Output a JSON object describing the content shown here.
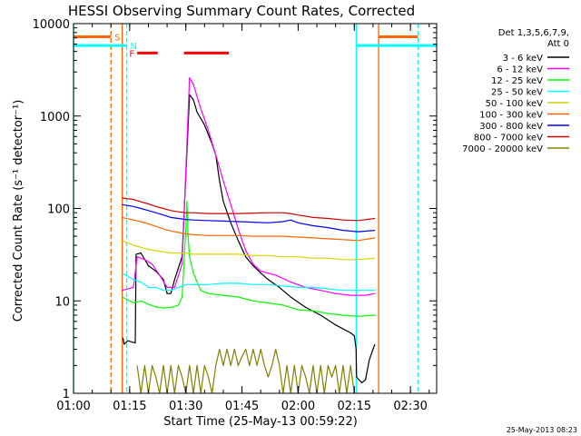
{
  "chart_data": {
    "type": "line",
    "title": "HESSI Observing Summary Count Rates, Corrected",
    "xlabel": "Start Time (25-May-13 00:59:22)",
    "ylabel": "Corrected Count Rate (s⁻¹ detector⁻¹)",
    "x_unit": "minutes after 01:00 (25-May-13)",
    "xlim": [
      0,
      97
    ],
    "ylim": [
      1,
      10000
    ],
    "y_scale": "log",
    "grid": false,
    "x_ticks": [
      {
        "label": "01:00",
        "value": 0
      },
      {
        "label": "01:15",
        "value": 15
      },
      {
        "label": "01:30",
        "value": 30
      },
      {
        "label": "01:45",
        "value": 45
      },
      {
        "label": "02:00",
        "value": 60
      },
      {
        "label": "02:15",
        "value": 75
      },
      {
        "label": "02:30",
        "value": 90
      }
    ],
    "y_ticks": [
      {
        "label": "1",
        "value": 1
      },
      {
        "label": "10",
        "value": 10
      },
      {
        "label": "100",
        "value": 100
      },
      {
        "label": "1000",
        "value": 1000
      },
      {
        "label": "10000",
        "value": 10000
      }
    ],
    "legend": {
      "position": "right",
      "header": [
        "Det 1,3,5,6,7,9,",
        "Att 0"
      ]
    },
    "series": [
      {
        "name": "3 - 6 keV",
        "color": "#000000",
        "points": [
          [
            13.2,
            4
          ],
          [
            13.5,
            3.4
          ],
          [
            14.5,
            3.7
          ],
          [
            16.5,
            3.5
          ],
          [
            16.7,
            32
          ],
          [
            18,
            33
          ],
          [
            20,
            24
          ],
          [
            22,
            21
          ],
          [
            24,
            17
          ],
          [
            25,
            12
          ],
          [
            26,
            12
          ],
          [
            27,
            17
          ],
          [
            29,
            30
          ],
          [
            31,
            1700
          ],
          [
            32,
            1500
          ],
          [
            33,
            1100
          ],
          [
            35,
            800
          ],
          [
            37,
            500
          ],
          [
            38,
            380
          ],
          [
            39,
            200
          ],
          [
            40,
            120
          ],
          [
            42,
            70
          ],
          [
            44,
            45
          ],
          [
            46,
            30
          ],
          [
            48,
            24
          ],
          [
            50,
            20
          ],
          [
            52,
            17
          ],
          [
            55,
            14
          ],
          [
            58,
            11
          ],
          [
            62,
            8.5
          ],
          [
            66,
            7
          ],
          [
            70,
            5.5
          ],
          [
            74,
            4.5
          ],
          [
            75,
            4.2
          ],
          [
            75.5,
            3.0
          ],
          [
            75.6,
            1.5
          ],
          [
            77,
            1.3
          ],
          [
            78,
            1.4
          ],
          [
            79,
            2.3
          ],
          [
            80,
            3.0
          ],
          [
            80.5,
            3.4
          ]
        ]
      },
      {
        "name": "6 - 12 keV",
        "color": "#ff00ff",
        "points": [
          [
            13,
            13
          ],
          [
            16,
            14
          ],
          [
            17,
            30
          ],
          [
            19,
            28
          ],
          [
            21,
            25
          ],
          [
            23,
            19
          ],
          [
            25,
            14
          ],
          [
            27,
            14
          ],
          [
            29,
            25
          ],
          [
            31,
            2600
          ],
          [
            32,
            2200
          ],
          [
            34,
            1200
          ],
          [
            36,
            700
          ],
          [
            38,
            380
          ],
          [
            40,
            200
          ],
          [
            42,
            110
          ],
          [
            44,
            60
          ],
          [
            46,
            35
          ],
          [
            48,
            25
          ],
          [
            50,
            21
          ],
          [
            54,
            19
          ],
          [
            58,
            16
          ],
          [
            62,
            14
          ],
          [
            66,
            13
          ],
          [
            70,
            12
          ],
          [
            74,
            11.5
          ],
          [
            78,
            11.5
          ],
          [
            80.5,
            12
          ]
        ]
      },
      {
        "name": "12 - 25 keV",
        "color": "#00ff00",
        "points": [
          [
            13,
            11
          ],
          [
            16,
            9.5
          ],
          [
            18,
            10
          ],
          [
            20,
            9.2
          ],
          [
            22,
            8.6
          ],
          [
            24,
            8.4
          ],
          [
            26,
            8.5
          ],
          [
            28,
            9
          ],
          [
            29,
            11
          ],
          [
            29.5,
            25
          ],
          [
            30,
            60
          ],
          [
            30.3,
            120
          ],
          [
            30.6,
            50
          ],
          [
            31,
            30
          ],
          [
            32,
            20
          ],
          [
            33,
            16
          ],
          [
            34,
            13
          ],
          [
            36,
            12
          ],
          [
            40,
            11.5
          ],
          [
            44,
            11
          ],
          [
            48,
            10
          ],
          [
            52,
            9.5
          ],
          [
            56,
            9
          ],
          [
            60,
            8
          ],
          [
            64,
            7.8
          ],
          [
            68,
            7.3
          ],
          [
            72,
            7
          ],
          [
            76,
            6.8
          ],
          [
            80.5,
            7
          ]
        ]
      },
      {
        "name": "25 - 50 keV",
        "color": "#00ffff",
        "points": [
          [
            13,
            20
          ],
          [
            16,
            17
          ],
          [
            18,
            16
          ],
          [
            20,
            14
          ],
          [
            22,
            14
          ],
          [
            24,
            13
          ],
          [
            26,
            13
          ],
          [
            28,
            14
          ],
          [
            30,
            15
          ],
          [
            32,
            15
          ],
          [
            36,
            15
          ],
          [
            40,
            15.5
          ],
          [
            44,
            15.5
          ],
          [
            48,
            15
          ],
          [
            52,
            15
          ],
          [
            56,
            14.5
          ],
          [
            60,
            14
          ],
          [
            64,
            14
          ],
          [
            68,
            13.5
          ],
          [
            72,
            13
          ],
          [
            76,
            13
          ],
          [
            80.5,
            13
          ]
        ]
      },
      {
        "name": "50 - 100 keV",
        "color": "#d4d400",
        "points": [
          [
            13,
            45
          ],
          [
            16,
            40
          ],
          [
            18,
            38
          ],
          [
            20,
            36
          ],
          [
            22,
            35
          ],
          [
            24,
            34
          ],
          [
            26,
            33
          ],
          [
            28,
            33
          ],
          [
            30,
            33
          ],
          [
            32,
            32
          ],
          [
            36,
            32
          ],
          [
            40,
            32
          ],
          [
            44,
            32
          ],
          [
            48,
            31
          ],
          [
            52,
            31
          ],
          [
            56,
            30
          ],
          [
            60,
            30
          ],
          [
            64,
            29
          ],
          [
            68,
            29
          ],
          [
            72,
            28
          ],
          [
            76,
            28
          ],
          [
            80.5,
            29
          ]
        ]
      },
      {
        "name": "100 - 300 keV",
        "color": "#ff6600",
        "points": [
          [
            13,
            80
          ],
          [
            16,
            75
          ],
          [
            18,
            72
          ],
          [
            20,
            68
          ],
          [
            22,
            64
          ],
          [
            24,
            60
          ],
          [
            26,
            57
          ],
          [
            28,
            55
          ],
          [
            30,
            53
          ],
          [
            32,
            52
          ],
          [
            36,
            51
          ],
          [
            40,
            51
          ],
          [
            44,
            51
          ],
          [
            48,
            50
          ],
          [
            52,
            50
          ],
          [
            56,
            50
          ],
          [
            60,
            49
          ],
          [
            64,
            48
          ],
          [
            68,
            47
          ],
          [
            72,
            46
          ],
          [
            76,
            45
          ],
          [
            80.5,
            48
          ]
        ]
      },
      {
        "name": "300 - 800 keV",
        "color": "#0000ff",
        "points": [
          [
            13,
            110
          ],
          [
            16,
            105
          ],
          [
            18,
            100
          ],
          [
            20,
            95
          ],
          [
            22,
            90
          ],
          [
            24,
            85
          ],
          [
            26,
            80
          ],
          [
            28,
            78
          ],
          [
            30,
            76
          ],
          [
            32,
            75
          ],
          [
            36,
            74
          ],
          [
            40,
            73
          ],
          [
            44,
            72
          ],
          [
            48,
            71
          ],
          [
            52,
            70
          ],
          [
            56,
            72
          ],
          [
            58,
            75
          ],
          [
            60,
            70
          ],
          [
            64,
            65
          ],
          [
            68,
            62
          ],
          [
            72,
            58
          ],
          [
            76,
            56
          ],
          [
            80.5,
            58
          ]
        ]
      },
      {
        "name": "800 - 7000 keV",
        "color": "#cc0000",
        "points": [
          [
            13,
            130
          ],
          [
            16,
            125
          ],
          [
            18,
            118
          ],
          [
            20,
            112
          ],
          [
            22,
            105
          ],
          [
            24,
            100
          ],
          [
            26,
            95
          ],
          [
            28,
            92
          ],
          [
            30,
            90
          ],
          [
            32,
            90
          ],
          [
            36,
            88
          ],
          [
            40,
            88
          ],
          [
            44,
            88
          ],
          [
            48,
            89
          ],
          [
            52,
            90
          ],
          [
            56,
            90
          ],
          [
            58,
            88
          ],
          [
            60,
            85
          ],
          [
            64,
            80
          ],
          [
            68,
            78
          ],
          [
            72,
            75
          ],
          [
            76,
            74
          ],
          [
            80.5,
            78
          ]
        ]
      },
      {
        "name": "7000 - 20000 keV",
        "color": "#808000",
        "points": [
          [
            17,
            2
          ],
          [
            18,
            1
          ],
          [
            19,
            2
          ],
          [
            20,
            1
          ],
          [
            21,
            2
          ],
          [
            22,
            1.5
          ],
          [
            23,
            1
          ],
          [
            24,
            2
          ],
          [
            25,
            1
          ],
          [
            26,
            2
          ],
          [
            27,
            1
          ],
          [
            28,
            2
          ],
          [
            29,
            1.5
          ],
          [
            30,
            1
          ],
          [
            31,
            2
          ],
          [
            32,
            1
          ],
          [
            33,
            2
          ],
          [
            34,
            1
          ],
          [
            35,
            2
          ],
          [
            36,
            1.5
          ],
          [
            37,
            1
          ],
          [
            38,
            2
          ],
          [
            39,
            3
          ],
          [
            40,
            2
          ],
          [
            41,
            3
          ],
          [
            42,
            2
          ],
          [
            43,
            3
          ],
          [
            44,
            2
          ],
          [
            45,
            2.5
          ],
          [
            46,
            3
          ],
          [
            47,
            2
          ],
          [
            48,
            3
          ],
          [
            49,
            2
          ],
          [
            50,
            3
          ],
          [
            51,
            2
          ],
          [
            52,
            1.5
          ],
          [
            53,
            2
          ],
          [
            54,
            3
          ],
          [
            55,
            2
          ],
          [
            56,
            1
          ],
          [
            57,
            2
          ],
          [
            58,
            1
          ],
          [
            59,
            2
          ],
          [
            60,
            1
          ],
          [
            61,
            2
          ],
          [
            62,
            1.5
          ],
          [
            63,
            1
          ],
          [
            64,
            2
          ],
          [
            65,
            1
          ],
          [
            66,
            2
          ],
          [
            67,
            1
          ],
          [
            68,
            2
          ],
          [
            69,
            1.5
          ],
          [
            70,
            2
          ],
          [
            71,
            1
          ],
          [
            72,
            2
          ],
          [
            73,
            1
          ],
          [
            74,
            2
          ],
          [
            75,
            1
          ]
        ]
      }
    ],
    "flag_bars": [
      {
        "label": "S",
        "color": "#ff6600",
        "y": 7200,
        "segments": [
          [
            0,
            10
          ],
          [
            81.5,
            92
          ]
        ]
      },
      {
        "label": "N",
        "color": "#00ffff",
        "y": 5800,
        "segments": [
          [
            0,
            14.2
          ],
          [
            75.5,
            97
          ]
        ]
      },
      {
        "label": "F",
        "color": "#ff0000",
        "y": 4800,
        "segments": [
          [
            17,
            22.5
          ],
          [
            29.5,
            41.5
          ]
        ]
      }
    ],
    "vertical_markers": [
      {
        "color": "#ff6600",
        "style": "dashed",
        "x": 10
      },
      {
        "color": "#ff6600",
        "style": "solid",
        "x": 13
      },
      {
        "color": "#00ffff",
        "style": "dashed",
        "x": 14.2
      },
      {
        "color": "#00ffff",
        "style": "solid",
        "x": 0
      },
      {
        "color": "#00ffff",
        "style": "solid",
        "x": 75.5
      },
      {
        "color": "#ff6600",
        "style": "solid",
        "x": 81.5
      },
      {
        "color": "#00ffff",
        "style": "dashed",
        "x": 92
      }
    ]
  },
  "footer": {
    "timestamp": "25-May-2013 08:23"
  }
}
